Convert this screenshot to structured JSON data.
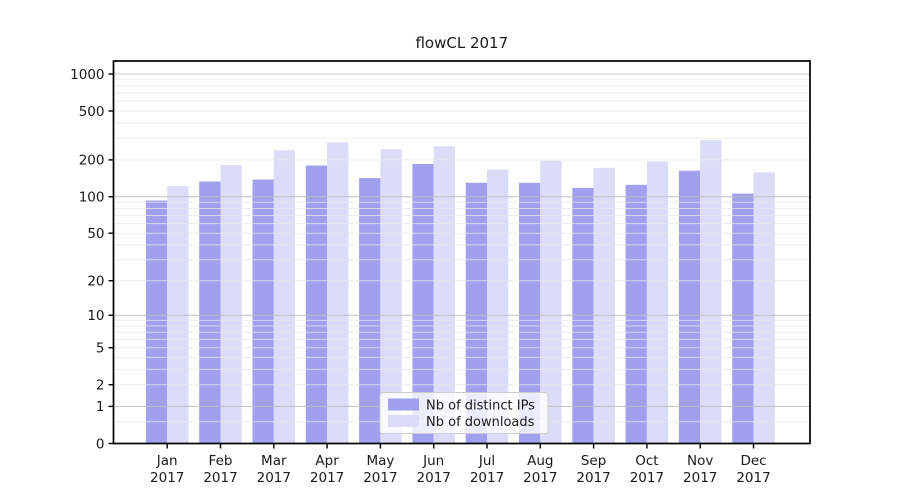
{
  "title": "flowCL 2017",
  "chart_data": {
    "type": "bar",
    "title": "flowCL 2017",
    "categories": [
      "Jan",
      "Feb",
      "Mar",
      "Apr",
      "May",
      "Jun",
      "Jul",
      "Aug",
      "Sep",
      "Oct",
      "Nov",
      "Dec"
    ],
    "category_year": "2017",
    "series": [
      {
        "name": "Nb of distinct IPs",
        "color": "#a0a0ef",
        "values": [
          93,
          133,
          138,
          180,
          142,
          185,
          130,
          130,
          118,
          125,
          163,
          106
        ]
      },
      {
        "name": "Nb of downloads",
        "color": "#dcdcf8",
        "values": [
          122,
          182,
          240,
          278,
          245,
          258,
          167,
          197,
          172,
          194,
          290,
          158
        ]
      }
    ],
    "yscale": "log1p",
    "ylim": [
      0,
      1306
    ],
    "y_ticks": [
      0,
      1,
      2,
      5,
      10,
      20,
      50,
      100,
      200,
      500,
      1000
    ],
    "grid_major": [
      1,
      10,
      100,
      1000
    ],
    "grid_minor": [
      0.5,
      2,
      3,
      4,
      5,
      6,
      7,
      8,
      9,
      20,
      30,
      40,
      50,
      60,
      70,
      80,
      90,
      200,
      300,
      400,
      500,
      600,
      700,
      800,
      900
    ],
    "grid": "on",
    "legend_position": "lower center",
    "colors": {
      "spine": "#000000",
      "grid_major": "#bdbdbd",
      "grid_minor": "#e8e8e8",
      "legend_border": "#cccccc",
      "legend_bg_alpha": 0.8,
      "text": "#1a1a1a"
    }
  }
}
